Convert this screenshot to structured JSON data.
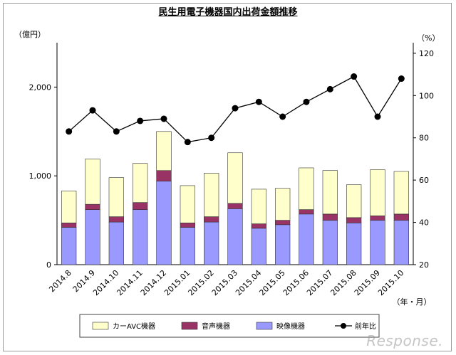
{
  "chart_data": {
    "type": "bar",
    "title": "民生用電子機器国内出荷金額推移",
    "left_unit": "（億円）",
    "right_unit": "（%）",
    "x_unit": "（年・月）",
    "categories": [
      "2014.8",
      "2014.9",
      "2014.10",
      "2014.11",
      "2014.12",
      "2015.01",
      "2015.02",
      "2015.03",
      "2015.04",
      "2015.05",
      "2015.06",
      "2015.07",
      "2015.08",
      "2015.09",
      "2015.10"
    ],
    "left_ticks": [
      "0",
      "1,000",
      "2,000"
    ],
    "left_ylim": [
      0,
      2500
    ],
    "right_ticks": [
      "20",
      "40",
      "60",
      "80",
      "100",
      "120"
    ],
    "right_ylim": [
      20,
      125
    ],
    "series": [
      {
        "name": "映像機器",
        "type": "stacked-bar",
        "axis": "left",
        "color": "#9999ff",
        "values": [
          420,
          620,
          480,
          620,
          940,
          420,
          480,
          630,
          410,
          450,
          570,
          500,
          470,
          500,
          500
        ]
      },
      {
        "name": "音声機器",
        "type": "stacked-bar",
        "axis": "left",
        "color": "#993366",
        "values": [
          50,
          60,
          60,
          80,
          120,
          50,
          60,
          60,
          50,
          50,
          50,
          70,
          60,
          50,
          70
        ]
      },
      {
        "name": "カーAVC機器",
        "type": "stacked-bar",
        "axis": "left",
        "color": "#ffffcc",
        "values": [
          360,
          510,
          440,
          440,
          440,
          420,
          490,
          570,
          390,
          360,
          470,
          490,
          370,
          520,
          480
        ]
      },
      {
        "name": "前年比",
        "type": "line",
        "axis": "right",
        "color": "#000000",
        "values": [
          83,
          93,
          83,
          88,
          89,
          78,
          80,
          94,
          97,
          90,
          97,
          103,
          109,
          90,
          108
        ]
      }
    ],
    "legend_placement": "bottom",
    "grid": false
  },
  "watermark": "Response."
}
